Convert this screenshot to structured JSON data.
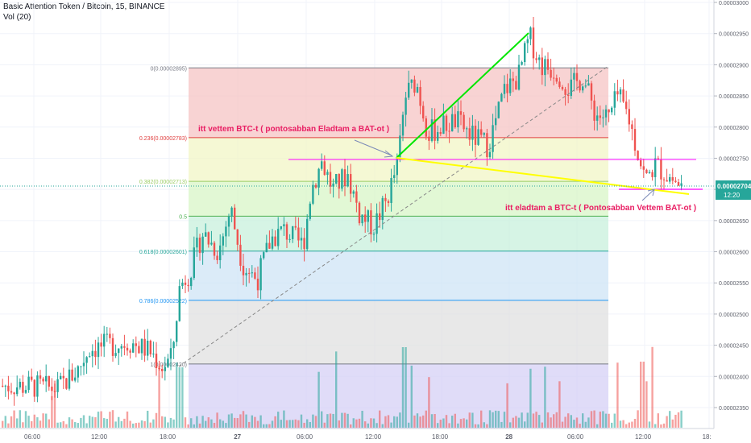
{
  "header": {
    "title": "Basic Attention Token / Bitcoin, 15, BINANCE",
    "volume_label": "Vol (20)"
  },
  "price_badge": {
    "price": "0.00002704",
    "countdown": "12:20",
    "color": "#26a69a"
  },
  "annotations": {
    "buy_note": "itt vettem BTC-t ( pontosabban Eladtam a BAT-ot )",
    "sell_note": "itt eladtam a BTC-t ( Pontosabban Vettem BAT-ot )",
    "note_color": "#e91e63"
  },
  "colors": {
    "up": "#26a69a",
    "down": "#ef5350",
    "green_trend": "#00e600",
    "yellow_trend": "#ffff00",
    "magenta_line": "#ff00ff",
    "axis_text": "#5d606b"
  },
  "chart_data": {
    "type": "candlestick",
    "title": "Basic Attention Token / Bitcoin, 15, BINANCE",
    "interval": "15",
    "exchange": "BINANCE",
    "y_axis": {
      "side": "right",
      "ticks": [
        "0.00003000",
        "0.00002950",
        "0.00002900",
        "0.00002850",
        "0.00002800",
        "0.00002750",
        "0.00002700",
        "0.00002650",
        "0.00002600",
        "0.00002550",
        "0.00002500",
        "0.00002450",
        "0.00002400",
        "0.00002350"
      ],
      "range": [
        2.32e-05,
        3e-05
      ]
    },
    "x_axis": {
      "ticks": [
        "06:00",
        "12:00",
        "18:00",
        "27",
        "06:00",
        "12:00",
        "18:00",
        "28",
        "06:00",
        "12:00",
        "18:"
      ]
    },
    "fibonacci_retracement": {
      "levels": [
        {
          "ratio": "0",
          "price": 2.895e-05,
          "label": "0(0.00002895)",
          "color": "#787b86",
          "fill": "#f5c4c4"
        },
        {
          "ratio": "0.236",
          "price": 2.783e-05,
          "label": "0.236(0.00002783)",
          "color": "#e04040",
          "fill": "#f2f5c5"
        },
        {
          "ratio": "0.382",
          "price": 2.713e-05,
          "label": "0.382(0.00002713)",
          "color": "#9ccc65",
          "fill": "#d8f5c7"
        },
        {
          "ratio": "0.5",
          "price": 2.657e-05,
          "label": "0.5",
          "color": "#4caf50",
          "fill": "#c8f0dc"
        },
        {
          "ratio": "0.618",
          "price": 2.601e-05,
          "label": "0.618(0.00002601)",
          "color": "#26a69a",
          "fill": "#cfe4f5"
        },
        {
          "ratio": "0.786",
          "price": 2.522e-05,
          "label": "0.786(0.00002522)",
          "color": "#2196f3",
          "fill": "#e0e0e0"
        },
        {
          "ratio": "1",
          "price": 2.42e-05,
          "label": "1(0.00002420)",
          "color": "#787b86",
          "fill": "#d6d0f5"
        }
      ],
      "trend_from": 2.42e-05,
      "trend_to": 2.895e-05
    },
    "magenta_levels": [
      2.752e-05,
      2.7e-05
    ],
    "current_price": 2.704e-05,
    "volume_series_label": "Vol (20)"
  }
}
